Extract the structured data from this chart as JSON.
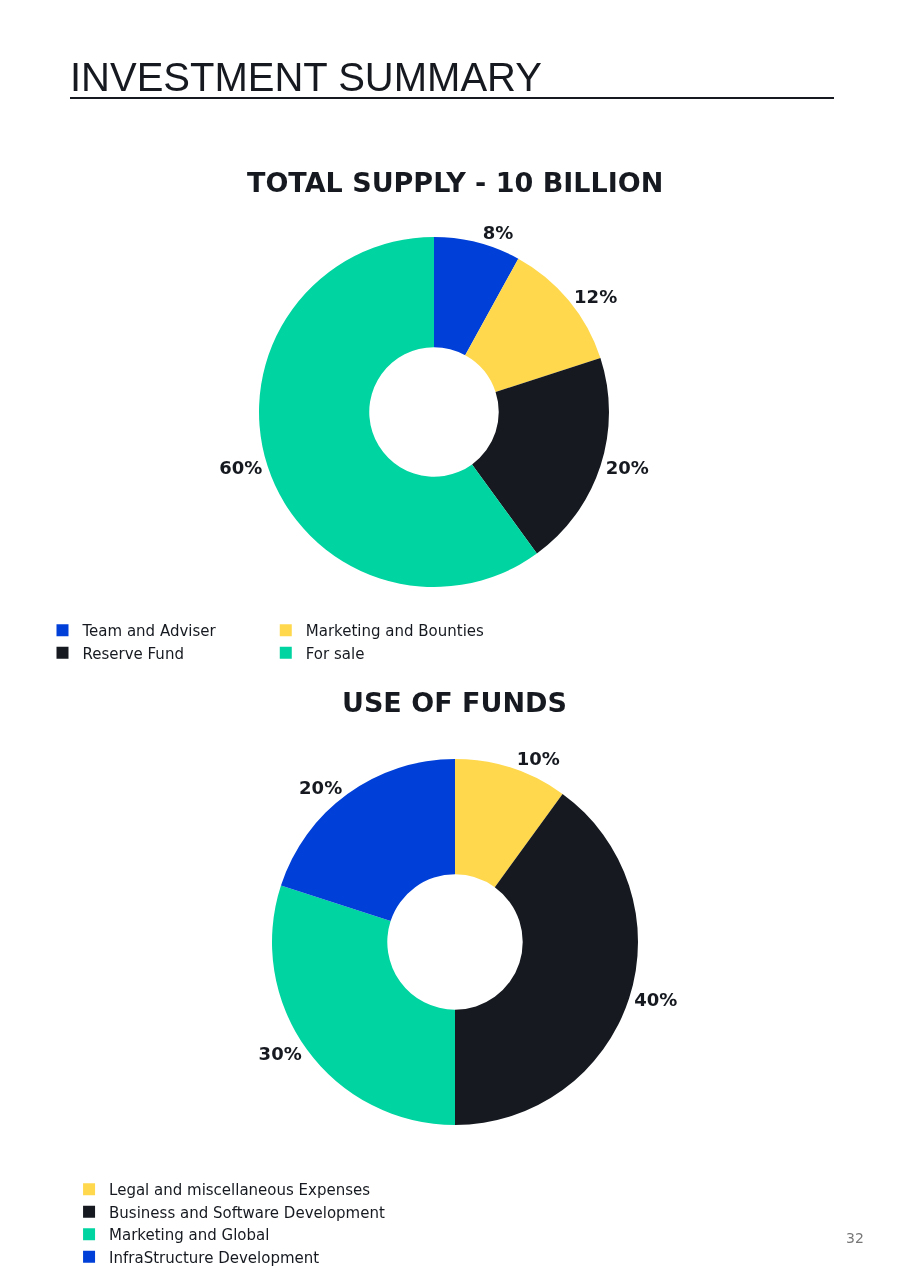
{
  "chart_data": [
    {
      "type": "donut",
      "title": "TOTAL SUPPLY - 10 BILLION",
      "annotations": [
        "INVESTMENT SUMMARY"
      ],
      "categories": [
        "Team and Adviser",
        "Marketing and Bounties",
        "Reserve Fund",
        "For sale"
      ],
      "values": [
        8,
        12,
        20,
        60
      ],
      "colors": [
        "#0040d8",
        "#ffd84d",
        "#161a20",
        "#00d4a0"
      ],
      "value_labels": [
        "8%",
        "12%",
        "20%",
        "60%"
      ],
      "legend": "bottom"
    },
    {
      "type": "donut",
      "title": "USE OF FUNDS",
      "annotations": [
        "32"
      ],
      "categories": [
        "Legal and miscellaneous Expenses",
        "Business and Software Development",
        "Marketing and Global",
        "InfraStructure Development"
      ],
      "values": [
        10,
        40,
        30,
        20
      ],
      "colors": [
        "#ffd84d",
        "#161a20",
        "#00d4a0",
        "#0040d8"
      ],
      "value_labels": [
        "10%",
        "40%",
        "30%",
        "20%"
      ],
      "legend": "bottom"
    }
  ]
}
